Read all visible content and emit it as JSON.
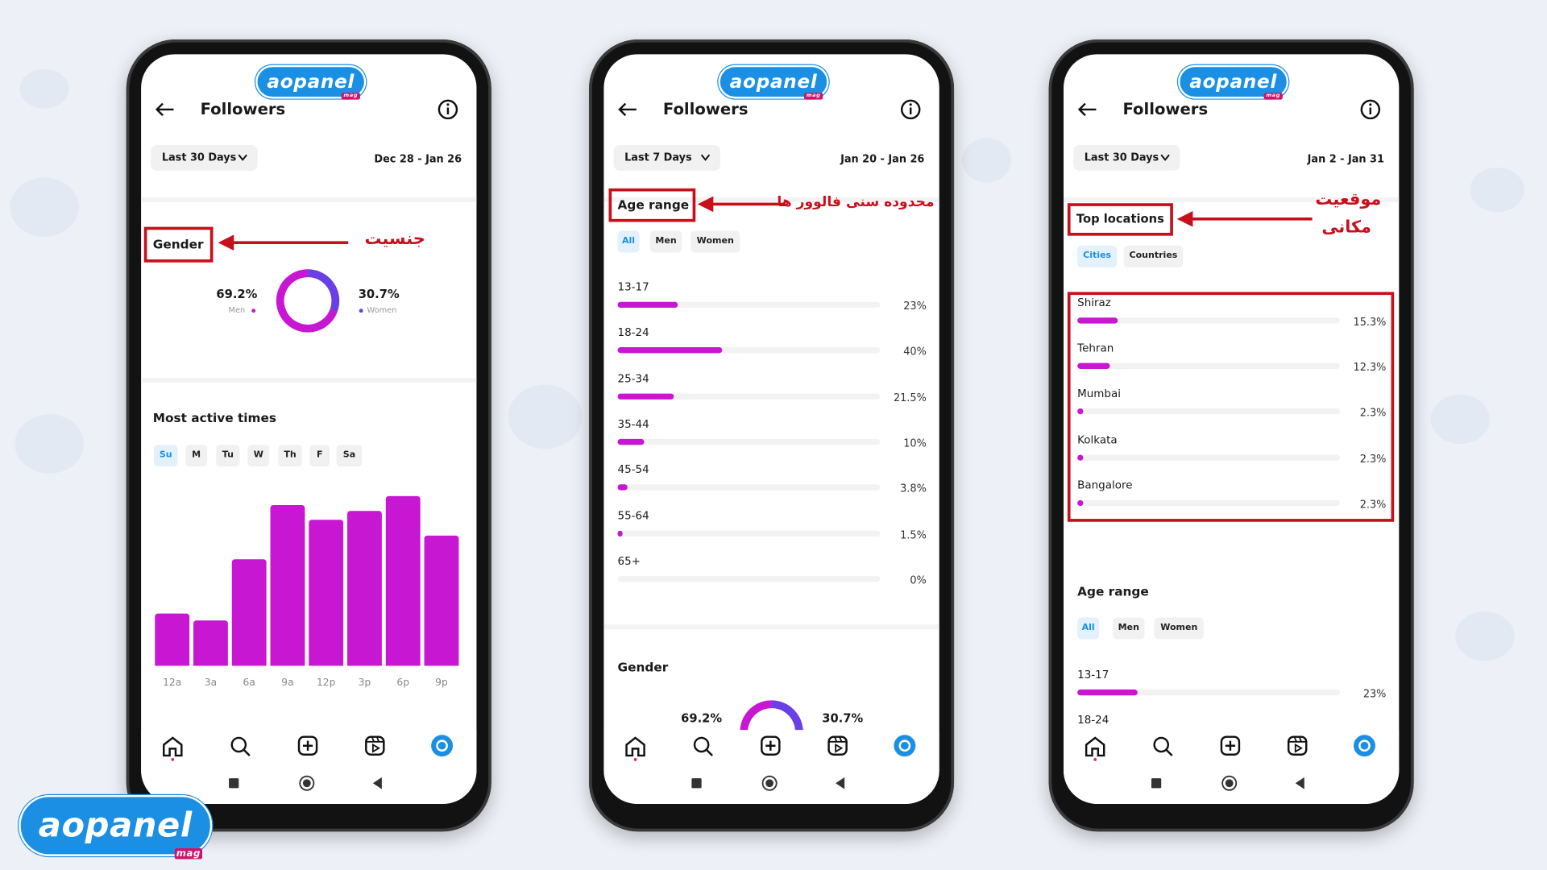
{
  "brand": "aopanel",
  "brand_tag": "mag",
  "screens": [
    {
      "title": "Followers",
      "period": "Last 30 Days",
      "dates": "Dec 28 - Jan 26",
      "gender": {
        "heading": "Gender",
        "annotation": "جنسیت",
        "men": {
          "label": "Men",
          "value": 69.2,
          "value_label": "69.2%"
        },
        "women": {
          "label": "Women",
          "value": 30.7,
          "value_label": "30.7%"
        }
      },
      "active_times": {
        "heading": "Most active times",
        "days": [
          "Su",
          "M",
          "Tu",
          "W",
          "Th",
          "F",
          "Sa"
        ],
        "categories": [
          "12a",
          "3a",
          "6a",
          "9a",
          "12p",
          "3p",
          "6p",
          "9p"
        ],
        "values": [
          31,
          27,
          63,
          95,
          86,
          91,
          100,
          77
        ],
        "ylim": [
          0,
          100
        ]
      }
    },
    {
      "title": "Followers",
      "period": "Last 7 Days",
      "dates": "Jan 20 - Jan 26",
      "age_range": {
        "heading": "Age range",
        "annotation": "محدوده سنی فالوور ها",
        "tabs": [
          "All",
          "Men",
          "Women"
        ],
        "categories": [
          "13-17",
          "18-24",
          "25-34",
          "35-44",
          "45-54",
          "55-64",
          "65+"
        ],
        "values": [
          23,
          40,
          21.5,
          10,
          3.8,
          1.5,
          0
        ],
        "value_labels": [
          "23%",
          "40%",
          "21.5%",
          "10%",
          "3.8%",
          "1.5%",
          "0%"
        ],
        "xlim": [
          0,
          100
        ]
      },
      "gender": {
        "heading": "Gender",
        "men": {
          "value": 69.2,
          "value_label": "69.2%"
        },
        "women": {
          "value": 30.7,
          "value_label": "30.7%"
        }
      }
    },
    {
      "title": "Followers",
      "period": "Last 30 Days",
      "dates": "Jan 2 - Jan 31",
      "top_locations": {
        "heading": "Top locations",
        "annotation": [
          "موقعیت",
          "مکانی"
        ],
        "tabs": [
          "Cities",
          "Countries"
        ],
        "categories": [
          "Shiraz",
          "Tehran",
          "Mumbai",
          "Kolkata",
          "Bangalore"
        ],
        "values": [
          15.3,
          12.3,
          2.3,
          2.3,
          2.3
        ],
        "value_labels": [
          "15.3%",
          "12.3%",
          "2.3%",
          "2.3%",
          "2.3%"
        ],
        "xlim": [
          0,
          100
        ]
      },
      "age_range": {
        "heading": "Age range",
        "tabs": [
          "All",
          "Men",
          "Women"
        ],
        "categories": [
          "13-17",
          "18-24"
        ],
        "values": [
          23,
          null
        ],
        "value_labels": [
          "23%",
          null
        ],
        "xlim": [
          0,
          100
        ]
      }
    }
  ]
}
